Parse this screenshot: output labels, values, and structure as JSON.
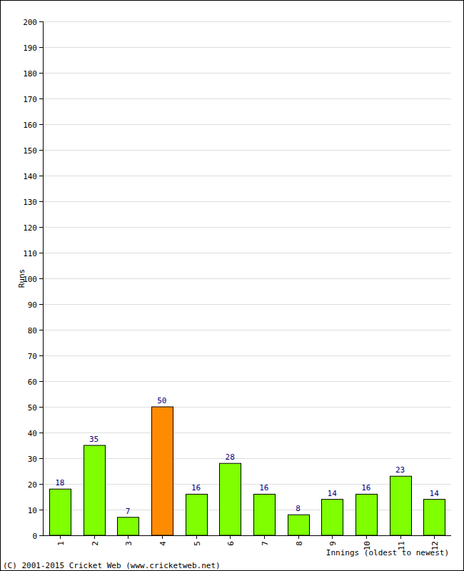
{
  "chart_data": {
    "type": "bar",
    "categories": [
      "1",
      "2",
      "3",
      "4",
      "5",
      "6",
      "7",
      "8",
      "9",
      "10",
      "11",
      "12"
    ],
    "values": [
      18,
      35,
      7,
      50,
      16,
      28,
      16,
      8,
      14,
      16,
      23,
      14
    ],
    "colors": [
      "#80ff00",
      "#80ff00",
      "#80ff00",
      "#ff8c00",
      "#80ff00",
      "#80ff00",
      "#80ff00",
      "#80ff00",
      "#80ff00",
      "#80ff00",
      "#80ff00",
      "#80ff00"
    ],
    "ylim": [
      0,
      200
    ],
    "yticks": [
      0,
      10,
      20,
      30,
      40,
      50,
      60,
      70,
      80,
      90,
      100,
      110,
      120,
      130,
      140,
      150,
      160,
      170,
      180,
      190,
      200
    ],
    "grid": true,
    "data_labels": true,
    "x_label": "Innings (oldest to newest)",
    "y_label": "Runs",
    "annotations": [
      "(C) 2001-2015 Cricket Web (www.cricketweb.net)"
    ]
  }
}
